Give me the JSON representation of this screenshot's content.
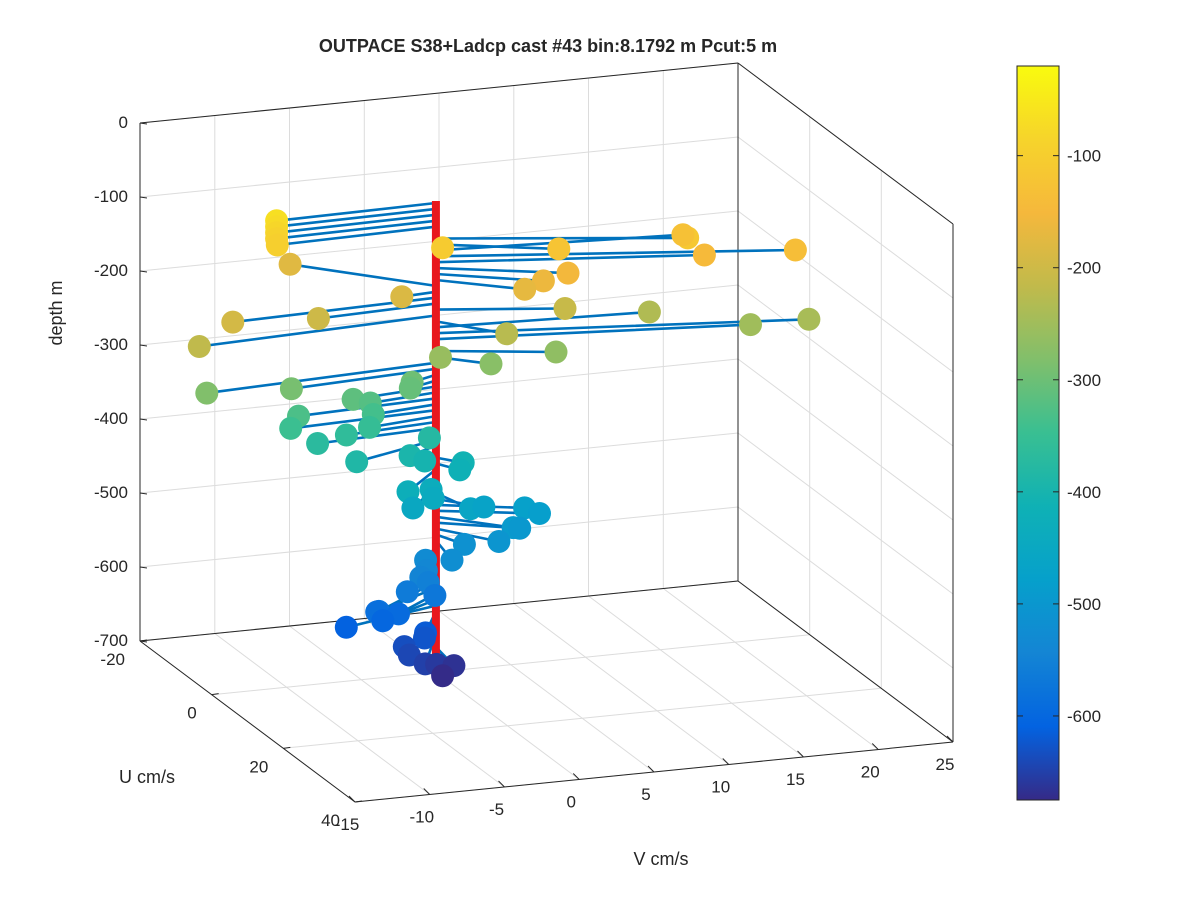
{
  "chart_data": {
    "type": "scatter",
    "title": "OUTPACE S38+Ladcp cast #43 bin:8.1792 m  Pcut:5 m",
    "xlabel": "U cm/s",
    "ylabel": "V cm/s",
    "zlabel": "depth m",
    "xlim": [
      -20,
      40
    ],
    "ylim": [
      -15,
      25
    ],
    "zlim": [
      -700,
      0
    ],
    "xticks": [
      -20,
      0,
      20,
      40
    ],
    "yticks": [
      -15,
      -10,
      -5,
      0,
      5,
      10,
      15,
      20,
      25
    ],
    "zticks": [
      0,
      -100,
      -200,
      -300,
      -400,
      -500,
      -600,
      -700
    ],
    "grid": true,
    "colorbar": {
      "ticks": [
        -100,
        -200,
        -300,
        -400,
        -500,
        -600
      ],
      "range": [
        -675,
        -20
      ],
      "colormap": "parula"
    },
    "reference_line_color": "#e8171d",
    "vector_color": "#0072BD",
    "points": [
      {
        "depth": -66,
        "u": 0.6,
        "v": -10.8
      },
      {
        "depth": -74,
        "u": 0.6,
        "v": -10.8
      },
      {
        "depth": -82,
        "u": 0.6,
        "v": -10.8
      },
      {
        "depth": -90,
        "u": 0.6,
        "v": -10.8
      },
      {
        "depth": -98,
        "u": 0.8,
        "v": -10.8
      },
      {
        "depth": -106,
        "u": 5.2,
        "v": -0.8
      },
      {
        "depth": -114,
        "u": 8.1,
        "v": 14.9
      },
      {
        "depth": -122,
        "u": 5.5,
        "v": 6.9
      },
      {
        "depth": -130,
        "u": 3.0,
        "v": 15.8
      },
      {
        "depth": -138,
        "u": 9.8,
        "v": 21.7
      },
      {
        "depth": -146,
        "u": 6.5,
        "v": 16.4
      },
      {
        "depth": -154,
        "u": 6.0,
        "v": 7.4
      },
      {
        "depth": -162,
        "u": 5.8,
        "v": 5.8
      },
      {
        "depth": -170,
        "u": 6.0,
        "v": 4.5
      },
      {
        "depth": -178,
        "u": -11.9,
        "v": -6.9
      },
      {
        "depth": -186,
        "u": 0.5,
        "v": -2.4
      },
      {
        "depth": -194,
        "u": 1.3,
        "v": -13.9
      },
      {
        "depth": -202,
        "u": 1.0,
        "v": -8.1
      },
      {
        "depth": -210,
        "u": 3.9,
        "v": 7.7
      },
      {
        "depth": -218,
        "u": 2.4,
        "v": -16.4
      },
      {
        "depth": -226,
        "u": 6.4,
        "v": 3.2
      },
      {
        "depth": -234,
        "u": 2.0,
        "v": 13.8
      },
      {
        "depth": -242,
        "u": 7.7,
        "v": 23.1
      },
      {
        "depth": -250,
        "u": 5.6,
        "v": 19.7
      },
      {
        "depth": -258,
        "u": 4.2,
        "v": -0.7
      },
      {
        "depth": -266,
        "u": 4.3,
        "v": 7.0
      },
      {
        "depth": -274,
        "u": 4.1,
        "v": 2.7
      },
      {
        "depth": -282,
        "u": 2.4,
        "v": -15.9
      },
      {
        "depth": -290,
        "u": 1.8,
        "v": -10.1
      },
      {
        "depth": -298,
        "u": 1.7,
        "v": -2.0
      },
      {
        "depth": -306,
        "u": 1.6,
        "v": -2.1
      },
      {
        "depth": -314,
        "u": 1.5,
        "v": -5.9
      },
      {
        "depth": -322,
        "u": 1.3,
        "v": -4.7
      },
      {
        "depth": -330,
        "u": 1.3,
        "v": -9.5
      },
      {
        "depth": -338,
        "u": 1.3,
        "v": -4.5
      },
      {
        "depth": -346,
        "u": 1.2,
        "v": -10.0
      },
      {
        "depth": -354,
        "u": 1.5,
        "v": -4.8
      },
      {
        "depth": -362,
        "u": 1.3,
        "v": -6.3
      },
      {
        "depth": -370,
        "u": 1.2,
        "v": -8.2
      },
      {
        "depth": -378,
        "u": 1.1,
        "v": -0.7
      },
      {
        "depth": -386,
        "u": 4.6,
        "v": -6.4
      },
      {
        "depth": -394,
        "u": 2.4,
        "v": -2.3
      },
      {
        "depth": -402,
        "u": 2.7,
        "v": -1.4
      },
      {
        "depth": -410,
        "u": 2.6,
        "v": 1.2
      },
      {
        "depth": -418,
        "u": 2.9,
        "v": 0.9
      },
      {
        "depth": -426,
        "u": 6.4,
        "v": -3.4
      },
      {
        "depth": -434,
        "u": 4.5,
        "v": -1.4
      },
      {
        "depth": -442,
        "u": 5.5,
        "v": -1.5
      },
      {
        "depth": -450,
        "u": 6.1,
        "v": -3.0
      },
      {
        "depth": -458,
        "u": 6.3,
        "v": 0.8
      },
      {
        "depth": -466,
        "u": 4.2,
        "v": 2.2
      },
      {
        "depth": -474,
        "u": 3.9,
        "v": 5.0
      },
      {
        "depth": -482,
        "u": 4.3,
        "v": 5.9
      },
      {
        "depth": -490,
        "u": 6.1,
        "v": 3.7
      },
      {
        "depth": -498,
        "u": 4.6,
        "v": 4.5
      },
      {
        "depth": -506,
        "u": 6.3,
        "v": 2.7
      },
      {
        "depth": -514,
        "u": 4.2,
        "v": 0.9
      },
      {
        "depth": -522,
        "u": 7.0,
        "v": -0.6
      },
      {
        "depth": -530,
        "u": 4.2,
        "v": -1.7
      },
      {
        "depth": -538,
        "u": 5.7,
        "v": -2.0
      },
      {
        "depth": -546,
        "u": 5.8,
        "v": -2.4
      },
      {
        "depth": -554,
        "u": 5.8,
        "v": -1.9
      },
      {
        "depth": -562,
        "u": 6.2,
        "v": -3.4
      },
      {
        "depth": -570,
        "u": 6.4,
        "v": -1.6
      },
      {
        "depth": -578,
        "u": 7.8,
        "v": -5.7
      },
      {
        "depth": -586,
        "u": 6.0,
        "v": -5.4
      },
      {
        "depth": -594,
        "u": 5.4,
        "v": -3.8
      },
      {
        "depth": -602,
        "u": 5.2,
        "v": -4.8
      },
      {
        "depth": -610,
        "u": 4.2,
        "v": -7.0
      },
      {
        "depth": -618,
        "u": 6.7,
        "v": -2.3
      },
      {
        "depth": -626,
        "u": 6.4,
        "v": -2.3
      },
      {
        "depth": -634,
        "u": 6.6,
        "v": -3.7
      },
      {
        "depth": -642,
        "u": 7.6,
        "v": -3.6
      },
      {
        "depth": -650,
        "u": 9.1,
        "v": -2.9
      },
      {
        "depth": -658,
        "u": 7.7,
        "v": -1.8
      },
      {
        "depth": -666,
        "u": 6.7,
        "v": -0.4
      },
      {
        "depth": -674,
        "u": 7.7,
        "v": -1.4
      }
    ]
  }
}
